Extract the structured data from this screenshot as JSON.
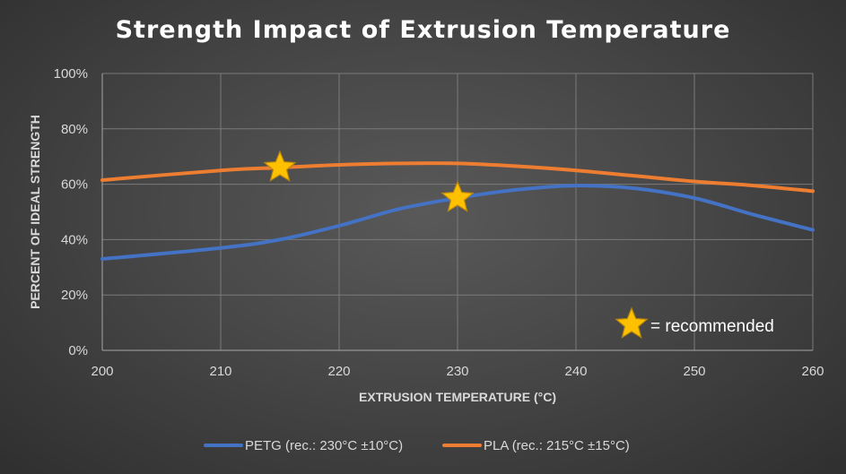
{
  "chart_data": {
    "type": "line",
    "title": "Strength Impact of Extrusion Temperature",
    "xlabel": "EXTRUSION TEMPERATURE (°C)",
    "ylabel": "PERCENT OF IDEAL STRENGTH",
    "xlim": [
      200,
      260
    ],
    "ylim": [
      0,
      100
    ],
    "x_ticks": [
      "200",
      "210",
      "220",
      "230",
      "240",
      "250",
      "260"
    ],
    "y_ticks": [
      "0%",
      "20%",
      "40%",
      "60%",
      "80%",
      "100%"
    ],
    "grid": true,
    "legend_position": "bottom",
    "series": [
      {
        "name": "PETG (rec.: 230°C ±10°C)",
        "color": "#4472C4",
        "x": [
          200,
          210,
          215,
          220,
          225,
          230,
          235,
          240,
          245,
          250,
          255,
          260
        ],
        "values": [
          33,
          37,
          40,
          45,
          51,
          55,
          58,
          59.5,
          58.5,
          55,
          49,
          43.5
        ],
        "recommended": {
          "x": 230,
          "y": 55
        }
      },
      {
        "name": "PLA  (rec.: 215°C ±15°C)",
        "color": "#ED7D31",
        "x": [
          200,
          210,
          215,
          220,
          225,
          230,
          235,
          240,
          245,
          250,
          255,
          260
        ],
        "values": [
          61.5,
          65,
          66,
          67,
          67.5,
          67.5,
          66.5,
          65,
          63,
          61,
          59.5,
          57.5
        ],
        "recommended": {
          "x": 215,
          "y": 66
        }
      }
    ],
    "annotation": {
      "text": "= recommended",
      "icon": "star-icon",
      "color": "#FFC000"
    }
  }
}
